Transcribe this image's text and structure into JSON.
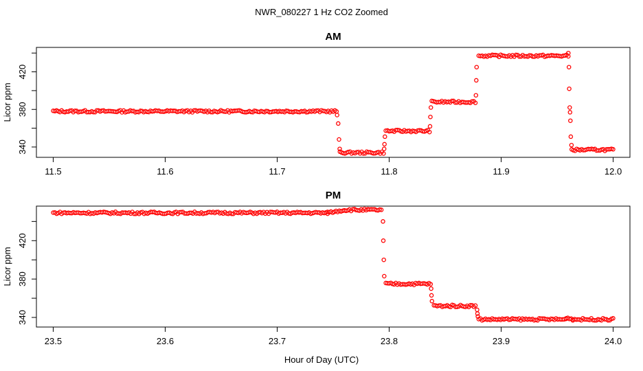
{
  "figure": {
    "title": "NWR_080227  1 Hz CO2 Zoomed",
    "xlabel": "Hour of Day (UTC)"
  },
  "chart_data": [
    {
      "type": "scatter",
      "title": "AM",
      "ylabel": "Licor ppm",
      "xlabel": "Hour of Day (UTC)",
      "xlim": [
        11.485,
        12.015
      ],
      "ylim": [
        329,
        446
      ],
      "xticks": [
        "11.5",
        "11.6",
        "11.7",
        "11.8",
        "11.9",
        "12.0"
      ],
      "xtick_values": [
        11.5,
        11.6,
        11.7,
        11.8,
        11.9,
        12.0
      ],
      "yticks": [
        "340",
        "380",
        "420"
      ],
      "ytick_values": [
        340,
        380,
        420
      ],
      "marker_color": "#ff0000",
      "segments": [
        {
          "x0": 11.5,
          "x1": 11.753,
          "y": 378
        },
        {
          "x0": 11.756,
          "x1": 11.795,
          "y": 334
        },
        {
          "x0": 11.797,
          "x1": 11.836,
          "y": 357
        },
        {
          "x0": 11.838,
          "x1": 11.877,
          "y": 388
        },
        {
          "x0": 11.88,
          "x1": 11.96,
          "y": 437
        },
        {
          "x0": 11.963,
          "x1": 12.0,
          "y": 337
        }
      ],
      "transitions": [
        {
          "x": 11.7535,
          "y": 374
        },
        {
          "x": 11.7545,
          "y": 365
        },
        {
          "x": 11.7552,
          "y": 348
        },
        {
          "x": 11.7558,
          "y": 338
        },
        {
          "x": 11.7955,
          "y": 338
        },
        {
          "x": 11.7958,
          "y": 343
        },
        {
          "x": 11.7962,
          "y": 351
        },
        {
          "x": 11.8365,
          "y": 362
        },
        {
          "x": 11.8368,
          "y": 372
        },
        {
          "x": 11.8372,
          "y": 382
        },
        {
          "x": 11.8775,
          "y": 395
        },
        {
          "x": 11.8778,
          "y": 411
        },
        {
          "x": 11.8781,
          "y": 425
        },
        {
          "x": 11.96,
          "y": 440
        },
        {
          "x": 11.9605,
          "y": 425
        },
        {
          "x": 11.9608,
          "y": 402
        },
        {
          "x": 11.9612,
          "y": 382
        },
        {
          "x": 11.9615,
          "y": 377
        },
        {
          "x": 11.9618,
          "y": 368
        },
        {
          "x": 11.9622,
          "y": 351
        },
        {
          "x": 11.9628,
          "y": 342
        }
      ]
    },
    {
      "type": "scatter",
      "title": "PM",
      "ylabel": "Licor ppm",
      "xlabel": "Hour of Day (UTC)",
      "xlim": [
        23.485,
        24.015
      ],
      "ylim": [
        330,
        456
      ],
      "xticks": [
        "23.5",
        "23.6",
        "23.7",
        "23.8",
        "23.9",
        "24.0"
      ],
      "xtick_values": [
        23.5,
        23.6,
        23.7,
        23.8,
        23.9,
        24.0
      ],
      "yticks": [
        "340",
        "380",
        "420"
      ],
      "ytick_values": [
        340,
        380,
        420
      ],
      "marker_color": "#ff0000",
      "segments": [
        {
          "x0": 23.5,
          "x1": 23.745,
          "y": 449
        },
        {
          "x0": 23.745,
          "x1": 23.76,
          "y0": 449,
          "y1": 452
        },
        {
          "x0": 23.76,
          "x1": 23.793,
          "y": 452
        },
        {
          "x0": 23.797,
          "x1": 23.837,
          "y": 375
        },
        {
          "x0": 23.84,
          "x1": 23.877,
          "y": 352
        },
        {
          "x0": 23.88,
          "x1": 23.958,
          "y": 338
        },
        {
          "x0": 23.958,
          "x1": 23.964,
          "y0": 340,
          "y1": 338
        },
        {
          "x0": 23.964,
          "x1": 24.0,
          "y": 338
        }
      ],
      "transitions": [
        {
          "x": 23.7945,
          "y": 440
        },
        {
          "x": 23.7948,
          "y": 420
        },
        {
          "x": 23.7952,
          "y": 400
        },
        {
          "x": 23.7956,
          "y": 383
        },
        {
          "x": 23.8375,
          "y": 370
        },
        {
          "x": 23.8378,
          "y": 363
        },
        {
          "x": 23.8382,
          "y": 357
        },
        {
          "x": 23.8785,
          "y": 348
        },
        {
          "x": 23.8788,
          "y": 344
        },
        {
          "x": 23.8792,
          "y": 341
        }
      ]
    }
  ]
}
